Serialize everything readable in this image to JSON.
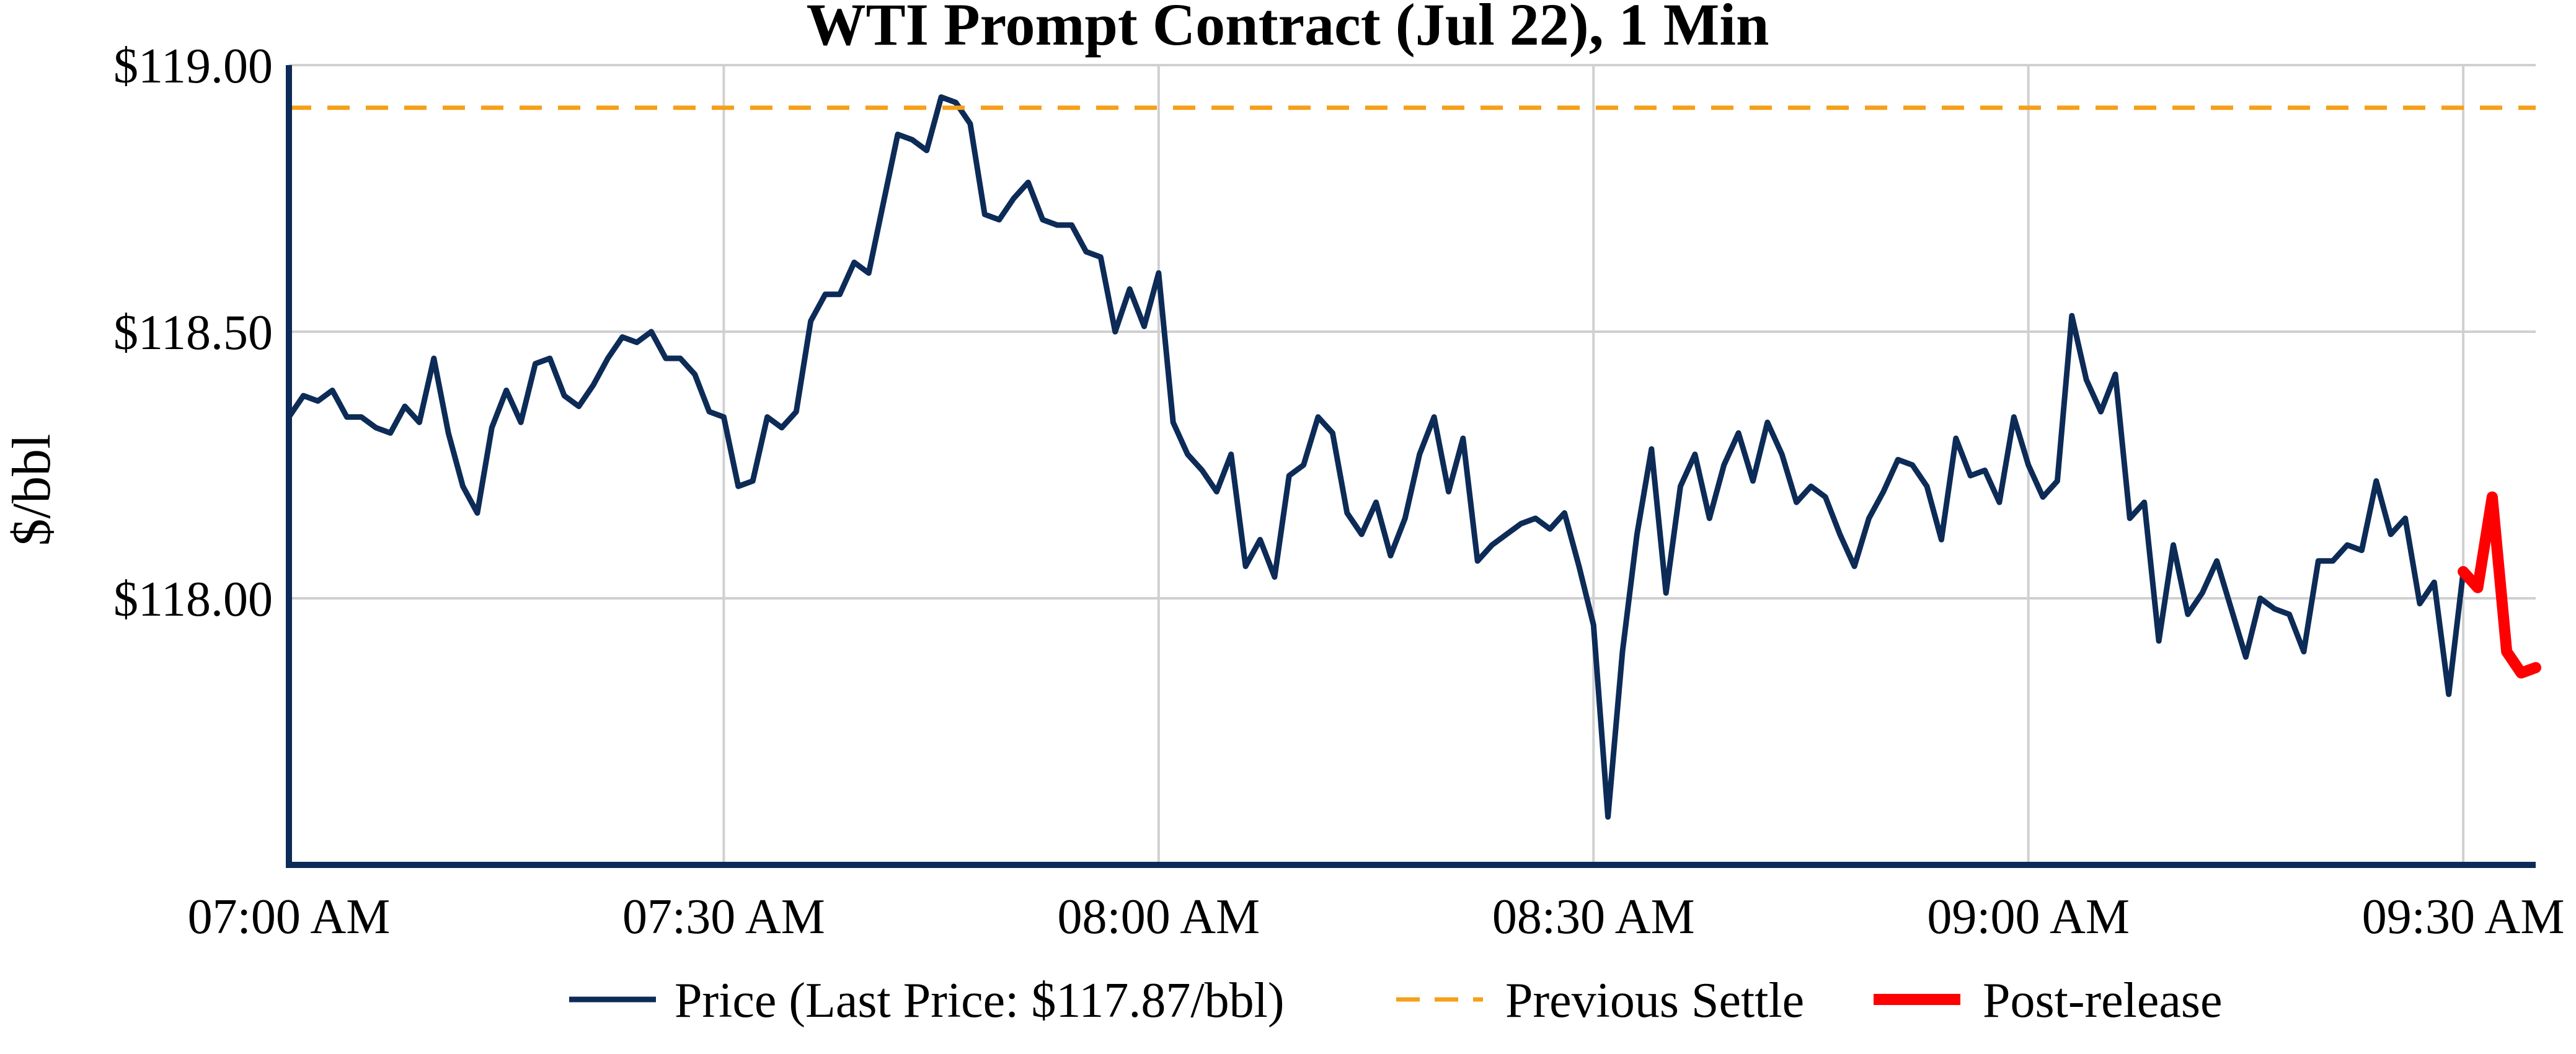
{
  "chart_data": {
    "type": "line",
    "title": "WTI Prompt Contract (Jul 22), 1 Min",
    "xlabel": "",
    "ylabel": "$/bbl",
    "x_ticks": [
      "07:00 AM",
      "07:30 AM",
      "08:00 AM",
      "08:30 AM",
      "09:00 AM",
      "09:30 AM"
    ],
    "y_ticks": [
      "$118.00",
      "$118.50",
      "$119.00"
    ],
    "y_tick_values": [
      118.0,
      118.5,
      119.0
    ],
    "xlim_minutes_after_7am": [
      0,
      155
    ],
    "ylim": [
      117.5,
      119.0
    ],
    "grid": true,
    "legend_position": "bottom",
    "colors": {
      "price": "#0d2b57",
      "previous_settle": "#f5a01a",
      "post_release": "#ff0000",
      "axis": "#0d2b57",
      "grid": "#d0d0d0"
    },
    "series": [
      {
        "name": "Price (Last Price: $117.87/bbl)",
        "style": "solid",
        "x_minutes_after_7am": [
          0,
          1,
          2,
          3,
          4,
          5,
          6,
          7,
          8,
          9,
          10,
          11,
          12,
          13,
          14,
          15,
          16,
          17,
          18,
          19,
          20,
          21,
          22,
          23,
          24,
          25,
          26,
          27,
          28,
          29,
          30,
          31,
          32,
          33,
          34,
          35,
          36,
          37,
          38,
          39,
          40,
          41,
          42,
          43,
          44,
          45,
          46,
          47,
          48,
          49,
          50,
          51,
          52,
          53,
          54,
          55,
          56,
          57,
          58,
          59,
          60,
          61,
          62,
          63,
          64,
          65,
          66,
          67,
          68,
          69,
          70,
          71,
          72,
          73,
          74,
          75,
          76,
          77,
          78,
          79,
          80,
          81,
          82,
          83,
          84,
          85,
          86,
          87,
          88,
          89,
          90,
          91,
          92,
          93,
          94,
          95,
          96,
          97,
          98,
          99,
          100,
          101,
          102,
          103,
          104,
          105,
          106,
          107,
          108,
          109,
          110,
          111,
          112,
          113,
          114,
          115,
          116,
          117,
          118,
          119,
          120,
          121,
          122,
          123,
          124,
          125,
          126,
          127,
          128,
          129,
          130,
          131,
          132,
          133,
          134,
          135,
          136,
          137,
          138,
          139,
          140,
          141,
          142,
          143,
          144,
          145,
          146,
          147,
          148,
          149,
          150
        ],
        "values": [
          118.34,
          118.38,
          118.37,
          118.39,
          118.34,
          118.34,
          118.32,
          118.31,
          118.36,
          118.33,
          118.45,
          118.31,
          118.21,
          118.16,
          118.32,
          118.39,
          118.33,
          118.44,
          118.45,
          118.38,
          118.36,
          118.4,
          118.45,
          118.49,
          118.48,
          118.5,
          118.45,
          118.45,
          118.42,
          118.35,
          118.34,
          118.21,
          118.22,
          118.34,
          118.32,
          118.35,
          118.52,
          118.57,
          118.57,
          118.63,
          118.61,
          118.74,
          118.87,
          118.86,
          118.84,
          118.94,
          118.93,
          118.89,
          118.72,
          118.71,
          118.75,
          118.78,
          118.71,
          118.7,
          118.7,
          118.65,
          118.64,
          118.5,
          118.58,
          118.51,
          118.61,
          118.33,
          118.27,
          118.24,
          118.2,
          118.27,
          118.06,
          118.11,
          118.04,
          118.23,
          118.25,
          118.34,
          118.31,
          118.16,
          118.12,
          118.18,
          118.08,
          118.15,
          118.27,
          118.34,
          118.2,
          118.3,
          118.07,
          118.1,
          118.12,
          118.14,
          118.15,
          118.13,
          118.16,
          118.06,
          117.95,
          117.59,
          117.9,
          118.12,
          118.28,
          118.01,
          118.21,
          118.27,
          118.15,
          118.25,
          118.31,
          118.22,
          118.33,
          118.27,
          118.18,
          118.21,
          118.19,
          118.12,
          118.06,
          118.15,
          118.2,
          118.26,
          118.25,
          118.21,
          118.11,
          118.3,
          118.23,
          118.24,
          118.18,
          118.34,
          118.25,
          118.19,
          118.22,
          118.53,
          118.41,
          118.35,
          118.42,
          118.15,
          118.18,
          117.92,
          118.1,
          117.97,
          118.01,
          118.07,
          117.98,
          117.89,
          118.0,
          117.98,
          117.97,
          117.9,
          118.07,
          118.07,
          118.1,
          118.09,
          118.22,
          118.12,
          118.15,
          117.99,
          118.03,
          117.82,
          118.05
        ]
      },
      {
        "name": "Previous Settle",
        "style": "dashed",
        "x_minutes_after_7am": [
          0,
          155
        ],
        "values": [
          118.92,
          118.92
        ]
      },
      {
        "name": "Post-release",
        "style": "solid",
        "x_minutes_after_7am": [
          150,
          151,
          152,
          153,
          154,
          155
        ],
        "values": [
          118.05,
          118.02,
          118.19,
          117.9,
          117.86,
          117.87
        ]
      }
    ]
  }
}
